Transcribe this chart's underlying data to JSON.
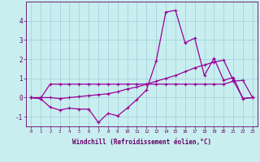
{
  "xlabel": "Windchill (Refroidissement éolien,°C)",
  "background_color": "#c8eef0",
  "grid_color": "#a0ccd8",
  "line_color": "#990099",
  "x_hours": [
    0,
    1,
    2,
    3,
    4,
    5,
    6,
    7,
    8,
    9,
    10,
    11,
    12,
    13,
    14,
    15,
    16,
    17,
    18,
    19,
    20,
    21,
    22,
    23
  ],
  "series1_flat": [
    0.0,
    -0.05,
    0.7,
    0.7,
    0.7,
    0.7,
    0.7,
    0.7,
    0.7,
    0.7,
    0.7,
    0.7,
    0.7,
    0.7,
    0.7,
    0.7,
    0.7,
    0.7,
    0.7,
    0.7,
    0.7,
    0.85,
    0.9,
    0.0
  ],
  "series2_spiky": [
    0.0,
    -0.05,
    -0.5,
    -0.65,
    -0.55,
    -0.6,
    -0.6,
    -1.3,
    -0.82,
    -0.95,
    -0.55,
    -0.1,
    0.4,
    1.9,
    4.45,
    4.55,
    2.85,
    3.1,
    1.15,
    2.05,
    0.9,
    1.05,
    -0.05,
    0.0
  ],
  "series3_ramp": [
    0.0,
    0.0,
    0.0,
    -0.05,
    0.0,
    0.05,
    0.1,
    0.15,
    0.2,
    0.3,
    0.45,
    0.55,
    0.7,
    0.85,
    1.0,
    1.15,
    1.35,
    1.55,
    1.7,
    1.85,
    1.95,
    0.9,
    -0.05,
    0.0
  ],
  "ylim": [
    -1.5,
    5.0
  ],
  "yticks": [
    -1,
    0,
    1,
    2,
    3,
    4
  ],
  "xlim": [
    -0.5,
    23.5
  ]
}
